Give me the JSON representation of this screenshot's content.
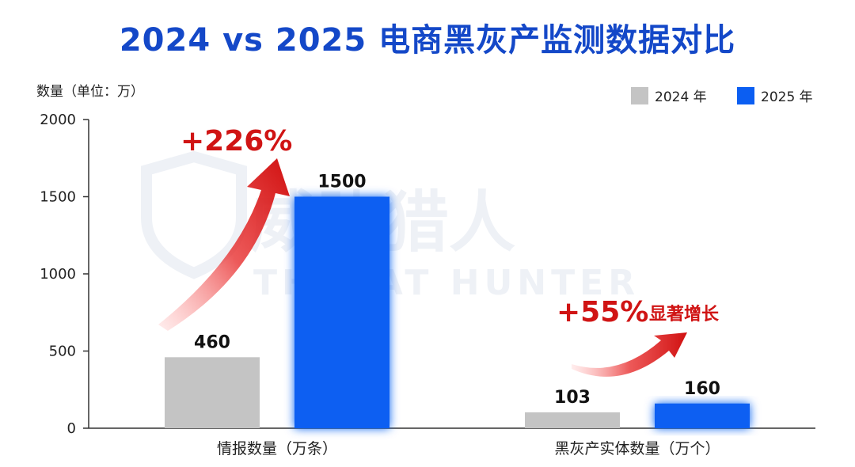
{
  "title": "2024 vs 2025 电商黑灰产监测数据对比",
  "watermark": {
    "cn": "威胁猎人",
    "en": "THREAT HUNTER"
  },
  "colors": {
    "title": "#1448c8",
    "bar_2024": "#c4c4c4",
    "bar_2025": "#0b5ef2",
    "growth": "#d01414"
  },
  "chart_data": {
    "type": "bar",
    "ylabel": "数量（单位：万）",
    "ylim": [
      0,
      2000
    ],
    "yticks": [
      0,
      500,
      1000,
      1500,
      2000
    ],
    "categories": [
      "情报数量（万条）",
      "黑灰产实体数量（万个）"
    ],
    "series": [
      {
        "name": "2024 年",
        "values": [
          460,
          103
        ]
      },
      {
        "name": "2025 年",
        "values": [
          1500,
          160
        ]
      }
    ],
    "legend": "top-right",
    "grid": false,
    "annotations": [
      {
        "category": 0,
        "text": "+226%"
      },
      {
        "category": 1,
        "text": "+55%",
        "suffix": "显著增长"
      }
    ]
  }
}
